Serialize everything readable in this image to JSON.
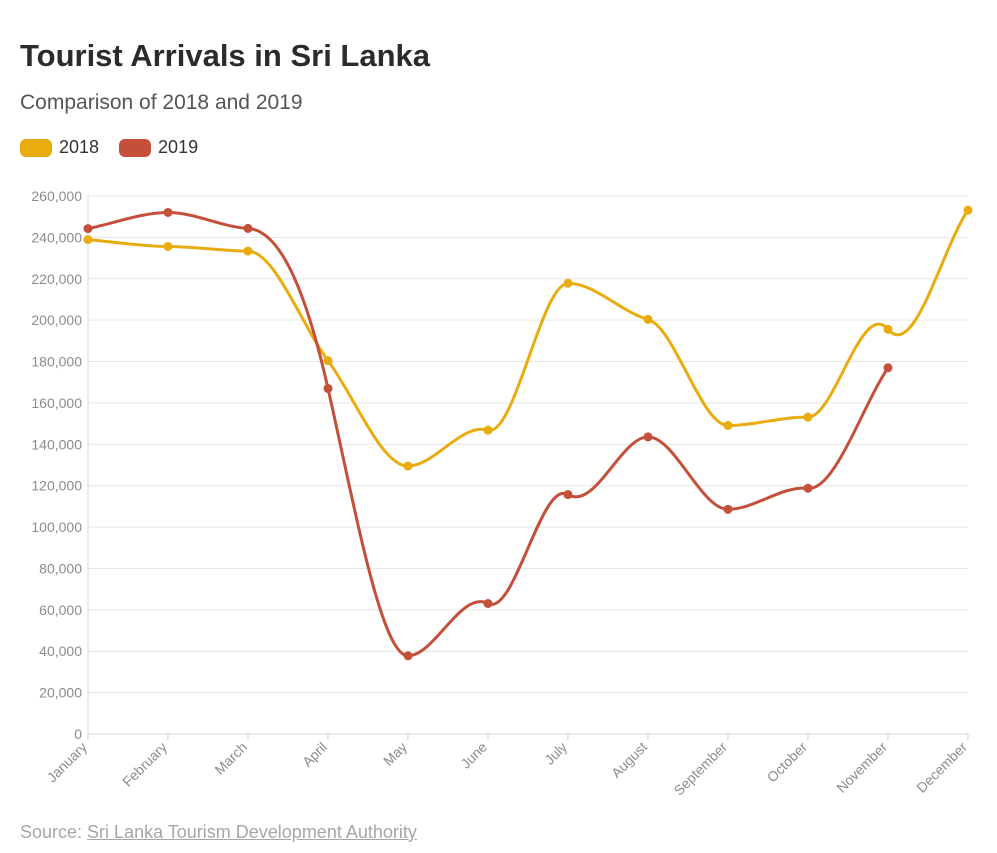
{
  "title": "Tourist Arrivals in Sri Lanka",
  "subtitle": "Comparison of 2018 and 2019",
  "source": {
    "prefix": "Source: ",
    "link_text": "Sri Lanka Tourism Development Authority"
  },
  "colors": {
    "series_2018": "#e8ac0f",
    "series_2019": "#c4503b",
    "grid": "#e6e6e6",
    "tick": "#8c8c8c"
  },
  "chart_data": {
    "type": "line",
    "title": "Tourist Arrivals in Sri Lanka",
    "subtitle": "Comparison of 2018 and 2019",
    "categories": [
      "January",
      "February",
      "March",
      "April",
      "May",
      "June",
      "July",
      "August",
      "September",
      "October",
      "November",
      "December"
    ],
    "y_ticks": [
      "0",
      "20,000",
      "40,000",
      "60,000",
      "80,000",
      "100,000",
      "120,000",
      "140,000",
      "160,000",
      "180,000",
      "200,000",
      "220,000",
      "240,000",
      "260,000"
    ],
    "ylim": [
      0,
      260000
    ],
    "grid": true,
    "legend_position": "top-left",
    "series": [
      {
        "name": "2018",
        "color": "#e8ac0f",
        "values": [
          238924,
          235618,
          233382,
          180429,
          129466,
          146828,
          217829,
          200359,
          149087,
          153123,
          195582,
          253169
        ]
      },
      {
        "name": "2019",
        "color": "#c4503b",
        "values": [
          244239,
          252033,
          244328,
          166975,
          37802,
          63072,
          115701,
          143587,
          108575,
          118743,
          176984,
          null
        ]
      }
    ]
  }
}
